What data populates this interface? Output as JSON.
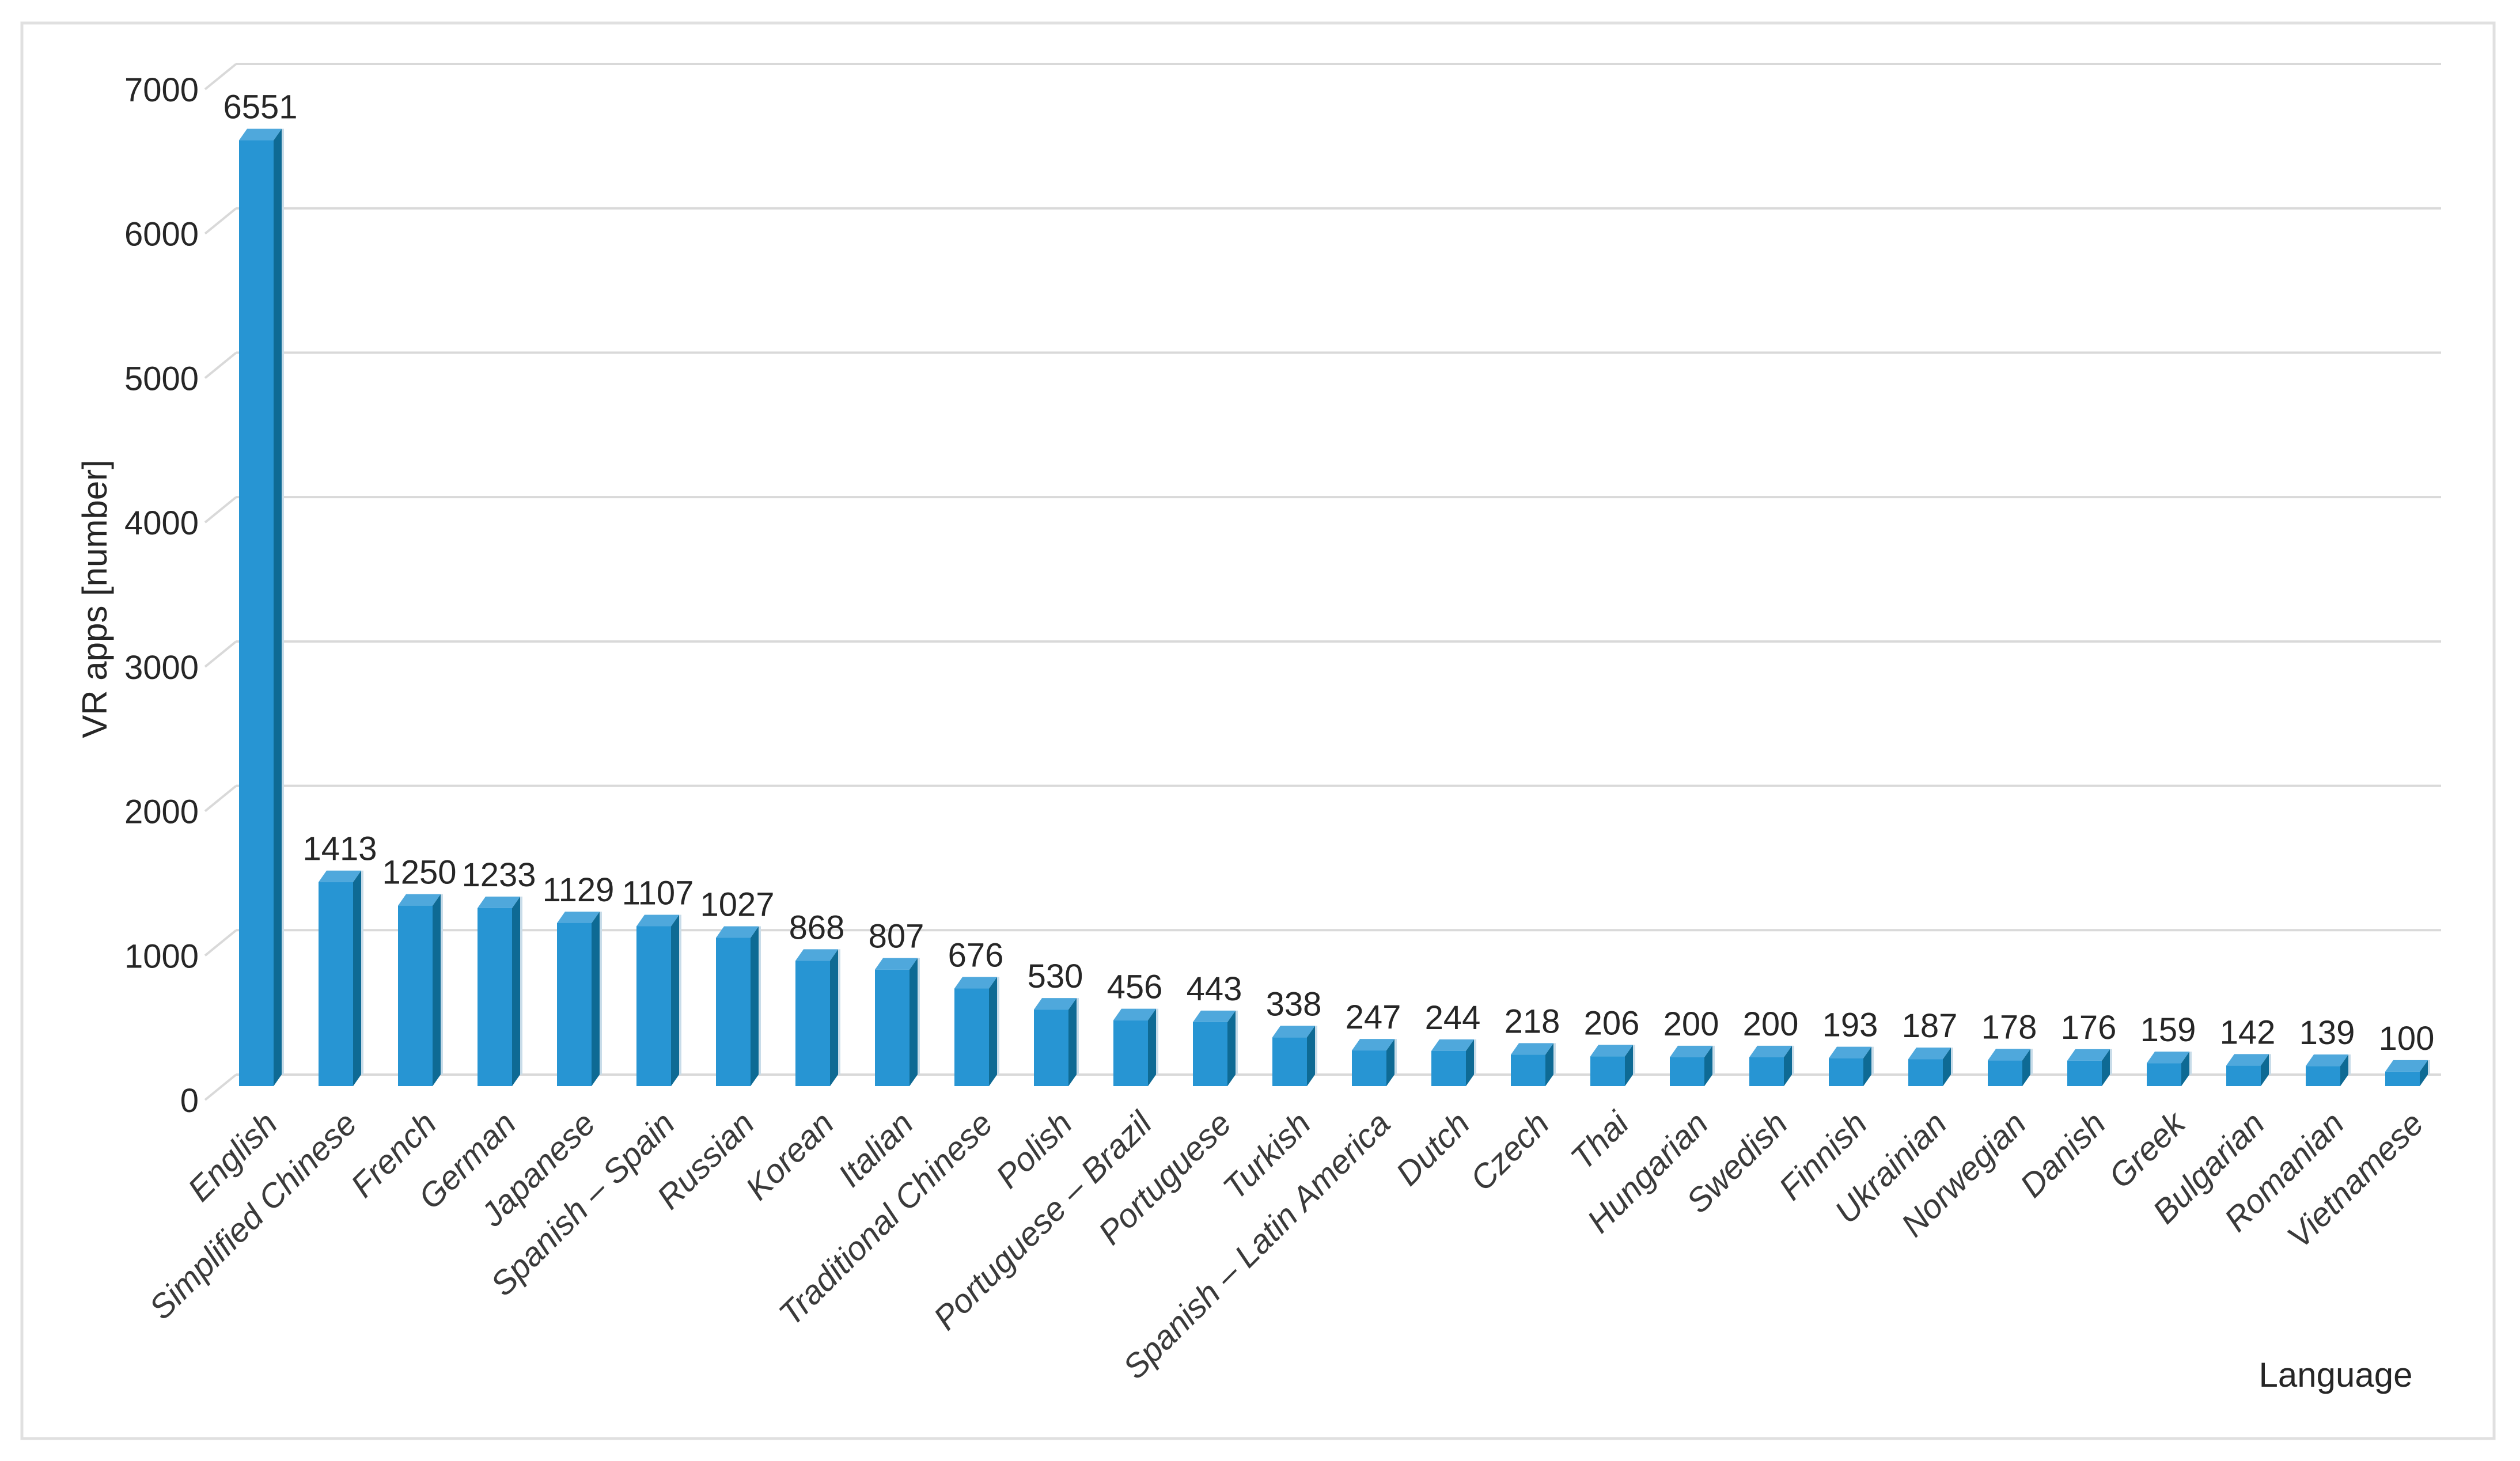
{
  "chart_data": {
    "type": "bar",
    "title": "",
    "xlabel": "Language",
    "ylabel": "VR apps [number]",
    "categories": [
      "English",
      "Simplified Chinese",
      "French",
      "German",
      "Japanese",
      "Spanish – Spain",
      "Russian",
      "Korean",
      "Italian",
      "Traditional Chinese",
      "Polish",
      "Portuguese – Brazil",
      "Portuguese",
      "Turkish",
      "Spanish – Latin America",
      "Dutch",
      "Czech",
      "Thai",
      "Hungarian",
      "Swedish",
      "Finnish",
      "Ukrainian",
      "Norwegian",
      "Danish",
      "Greek",
      "Bulgarian",
      "Romanian",
      "Vietnamese"
    ],
    "values": [
      6551,
      1413,
      1250,
      1233,
      1129,
      1107,
      1027,
      868,
      807,
      676,
      530,
      456,
      443,
      338,
      247,
      244,
      218,
      206,
      200,
      200,
      193,
      187,
      178,
      176,
      159,
      142,
      139,
      100
    ],
    "data_labels_shown": true,
    "ylim": [
      0,
      7000
    ],
    "yticks": [
      0,
      1000,
      2000,
      3000,
      4000,
      5000,
      6000,
      7000
    ],
    "grid": true,
    "legend": "none",
    "style_3d": true,
    "colors": {
      "bar_front": "#2795D3",
      "bar_top": "#4FA8DC",
      "bar_side": "#0E6A94",
      "bar_edge_highlight": "#C8DCE9",
      "gridline": "#D9D9D9",
      "outer_border": "#E0E0E0",
      "tick_text": "#262626",
      "category_text": "#3a3a3a"
    }
  },
  "axes": {
    "y_title": "VR apps [number]",
    "x_title": "Language"
  }
}
